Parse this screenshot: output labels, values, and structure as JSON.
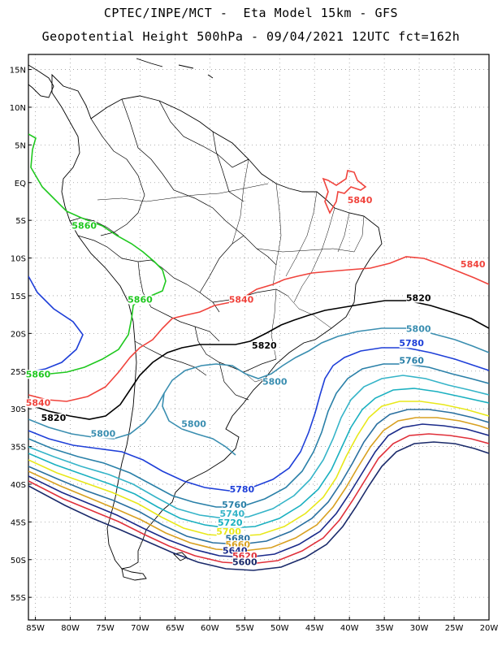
{
  "header": {
    "line1": "CPTEC/INPE/MCT -  Eta Model 15km - GFS",
    "line2": "Geopotential Height 500hPa - 09/04/2021 12UTC fct=162h"
  },
  "axes": {
    "lat_labels": [
      "15N",
      "10N",
      "5N",
      "EQ",
      "5S",
      "10S",
      "15S",
      "20S",
      "25S",
      "30S",
      "35S",
      "40S",
      "45S",
      "50S",
      "55S"
    ],
    "lon_labels": [
      "85W",
      "80W",
      "75W",
      "70W",
      "65W",
      "60W",
      "55W",
      "50W",
      "45W",
      "40W",
      "35W",
      "30W",
      "25W",
      "20W"
    ],
    "lat_range": [
      17,
      -58
    ],
    "lon_range": [
      -86,
      -20
    ],
    "grid": "dotted"
  },
  "contours": [
    {
      "label": "5860",
      "color": "#1fc81f",
      "labels": [
        [
          "5860",
          -78,
          -6
        ],
        [
          "5860",
          -70,
          -15.8
        ],
        [
          "5860",
          -84.6,
          -25.7
        ]
      ]
    },
    {
      "label": "5840",
      "color": "#f0433c",
      "labels": [
        [
          "5840",
          -84.6,
          -29.5
        ],
        [
          "5840",
          -55.5,
          -15.8
        ],
        [
          "5840",
          -22.3,
          -11.1
        ],
        [
          "5840",
          -38.5,
          -2.6
        ]
      ]
    },
    {
      "label": "5820",
      "color": "#000000",
      "labels": [
        [
          "5820",
          -82.4,
          -31.5
        ],
        [
          "5820",
          -52.2,
          -21.9
        ],
        [
          "5820",
          -30.1,
          -15.6
        ]
      ]
    },
    {
      "label": "5800",
      "color": "#3a8eb0",
      "labels": [
        [
          "5800",
          -75.3,
          -33.6
        ],
        [
          "5800",
          -62.3,
          -32.3
        ],
        [
          "5800",
          -50.7,
          -26.7
        ],
        [
          "5800",
          -30.1,
          -19.7
        ]
      ]
    },
    {
      "label": "5780",
      "color": "#1e3fd8",
      "labels": [
        [
          "5780",
          -31.1,
          -21.6
        ],
        [
          "5780",
          -55.4,
          -41.0
        ]
      ]
    },
    {
      "label": "5760",
      "color": "#2a80a8",
      "labels": [
        [
          "5760",
          -31.1,
          -23.9
        ],
        [
          "5760",
          -56.5,
          -43.0
        ]
      ]
    },
    {
      "label": "5740",
      "color": "#35b4c8",
      "labels": [
        [
          "5740",
          -56.8,
          -44.2
        ]
      ]
    },
    {
      "label": "5720",
      "color": "#1ab0c0",
      "labels": [
        [
          "5720",
          -57.1,
          -45.4
        ]
      ]
    },
    {
      "label": "5700",
      "color": "#e8e81a",
      "labels": [
        [
          "5700",
          -57.3,
          -46.6
        ]
      ]
    },
    {
      "label": "5680",
      "color": "#2a70a0",
      "labels": [
        [
          "5680",
          -56.0,
          -47.5
        ]
      ]
    },
    {
      "label": "5660",
      "color": "#d8a020",
      "labels": [
        [
          "5660",
          -56.0,
          -48.3
        ]
      ]
    },
    {
      "label": "5640",
      "color": "#1a2a8a",
      "labels": [
        [
          "5640",
          -56.4,
          -49.1
        ]
      ]
    },
    {
      "label": "5620",
      "color": "#e0303a",
      "labels": [
        [
          "5620",
          -55.0,
          -49.8
        ]
      ]
    },
    {
      "label": "5600",
      "color": "#1a2a6a",
      "labels": [
        [
          "5600",
          -55.0,
          -50.6
        ]
      ]
    }
  ]
}
